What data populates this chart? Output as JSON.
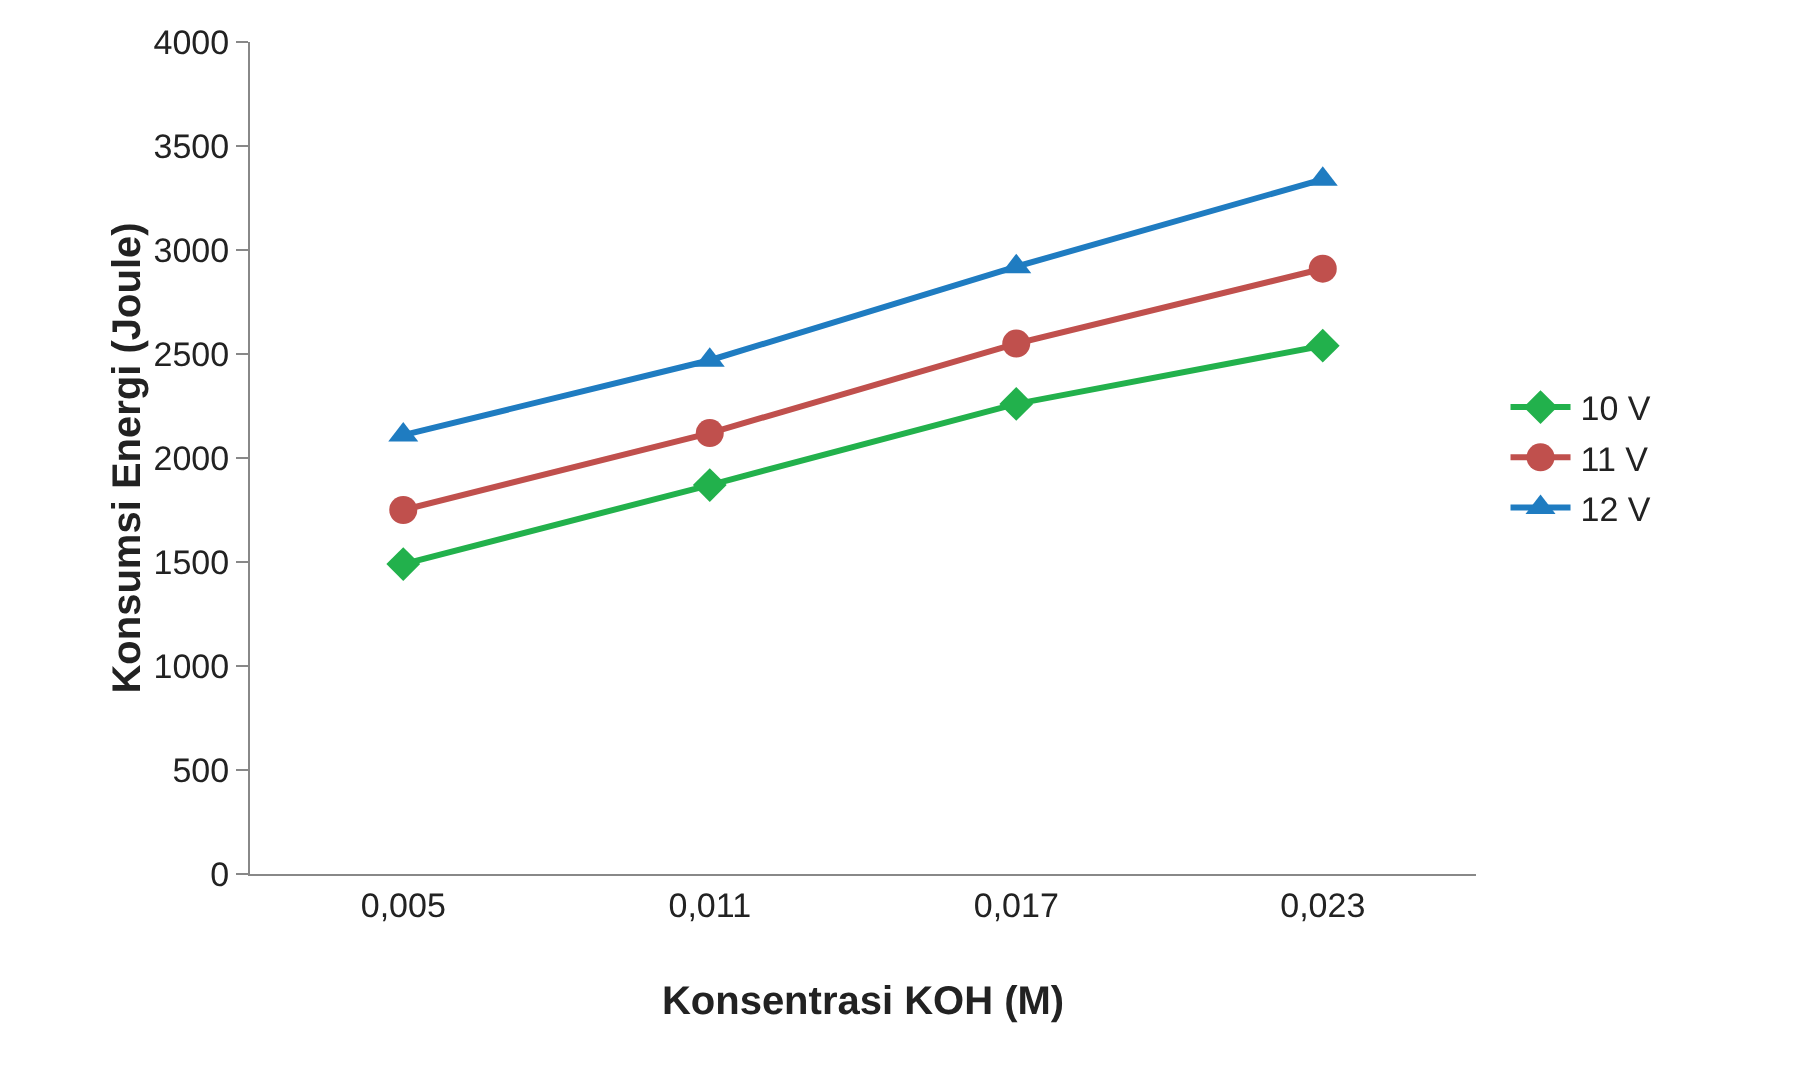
{
  "chart_data": {
    "type": "line",
    "xlabel": "Konsentrasi KOH (M)",
    "ylabel": "Konsumsi Energi (Joule)",
    "categories": [
      "0,005",
      "0,011",
      "0,017",
      "0,023"
    ],
    "series": [
      {
        "name": "10 V",
        "color": "#22b14c",
        "marker": "diamond",
        "values": [
          1490,
          1870,
          2260,
          2540
        ]
      },
      {
        "name": "11 V",
        "color": "#c0504d",
        "marker": "circle",
        "values": [
          1750,
          2120,
          2550,
          2910
        ]
      },
      {
        "name": "12 V",
        "color": "#1f7cc1",
        "marker": "triangle",
        "values": [
          2110,
          2470,
          2920,
          3340
        ]
      }
    ],
    "ylim": [
      0,
      4000
    ],
    "yticks": [
      0,
      500,
      1000,
      1500,
      2000,
      2500,
      3000,
      3500,
      4000
    ],
    "grid": false,
    "legend": "right",
    "line_style": "solid"
  }
}
